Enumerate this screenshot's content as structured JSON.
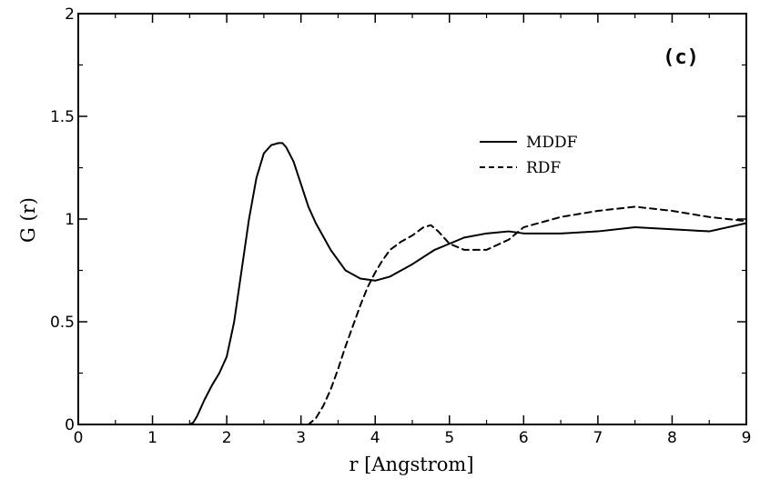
{
  "chart_data": {
    "type": "line",
    "xlabel": "r [Angstrom]",
    "ylabel": "G (r)",
    "annotation": "(c)",
    "xlim": [
      0,
      9
    ],
    "ylim": [
      0,
      2
    ],
    "x_ticks": [
      0,
      1,
      2,
      3,
      4,
      5,
      6,
      7,
      8,
      9
    ],
    "y_ticks": [
      0,
      0.5,
      1,
      1.5,
      2
    ],
    "x_tick_labels": [
      "0",
      "1",
      "2",
      "3",
      "4",
      "5",
      "6",
      "7",
      "8",
      "9"
    ],
    "y_tick_labels": [
      "0",
      "0.5",
      "1",
      "1.5",
      "2"
    ],
    "grid": false,
    "legend_position": "top-right",
    "series": [
      {
        "name": "MDDF",
        "style": "solid",
        "color": "#000000",
        "x": [
          1.5,
          1.55,
          1.6,
          1.7,
          1.8,
          1.9,
          2.0,
          2.1,
          2.2,
          2.3,
          2.4,
          2.5,
          2.6,
          2.7,
          2.75,
          2.8,
          2.9,
          3.0,
          3.1,
          3.2,
          3.4,
          3.6,
          3.8,
          4.0,
          4.2,
          4.5,
          4.8,
          5.0,
          5.2,
          5.5,
          5.8,
          6.0,
          6.5,
          7.0,
          7.5,
          8.0,
          8.5,
          9.0
        ],
        "y": [
          0.0,
          0.01,
          0.04,
          0.12,
          0.19,
          0.25,
          0.33,
          0.5,
          0.75,
          1.0,
          1.2,
          1.32,
          1.36,
          1.37,
          1.37,
          1.35,
          1.28,
          1.17,
          1.06,
          0.98,
          0.85,
          0.75,
          0.71,
          0.7,
          0.72,
          0.78,
          0.85,
          0.88,
          0.91,
          0.93,
          0.94,
          0.93,
          0.93,
          0.94,
          0.96,
          0.95,
          0.94,
          0.98
        ]
      },
      {
        "name": "RDF",
        "style": "dashed",
        "color": "#000000",
        "x": [
          3.1,
          3.2,
          3.3,
          3.4,
          3.5,
          3.6,
          3.7,
          3.8,
          3.9,
          4.0,
          4.1,
          4.2,
          4.35,
          4.5,
          4.65,
          4.75,
          4.85,
          5.0,
          5.2,
          5.5,
          5.8,
          6.0,
          6.5,
          7.0,
          7.5,
          8.0,
          8.5,
          9.0
        ],
        "y": [
          0.0,
          0.03,
          0.09,
          0.17,
          0.27,
          0.38,
          0.48,
          0.58,
          0.67,
          0.74,
          0.8,
          0.85,
          0.89,
          0.92,
          0.96,
          0.97,
          0.94,
          0.88,
          0.85,
          0.85,
          0.9,
          0.96,
          1.01,
          1.04,
          1.06,
          1.04,
          1.01,
          0.99
        ]
      }
    ]
  }
}
